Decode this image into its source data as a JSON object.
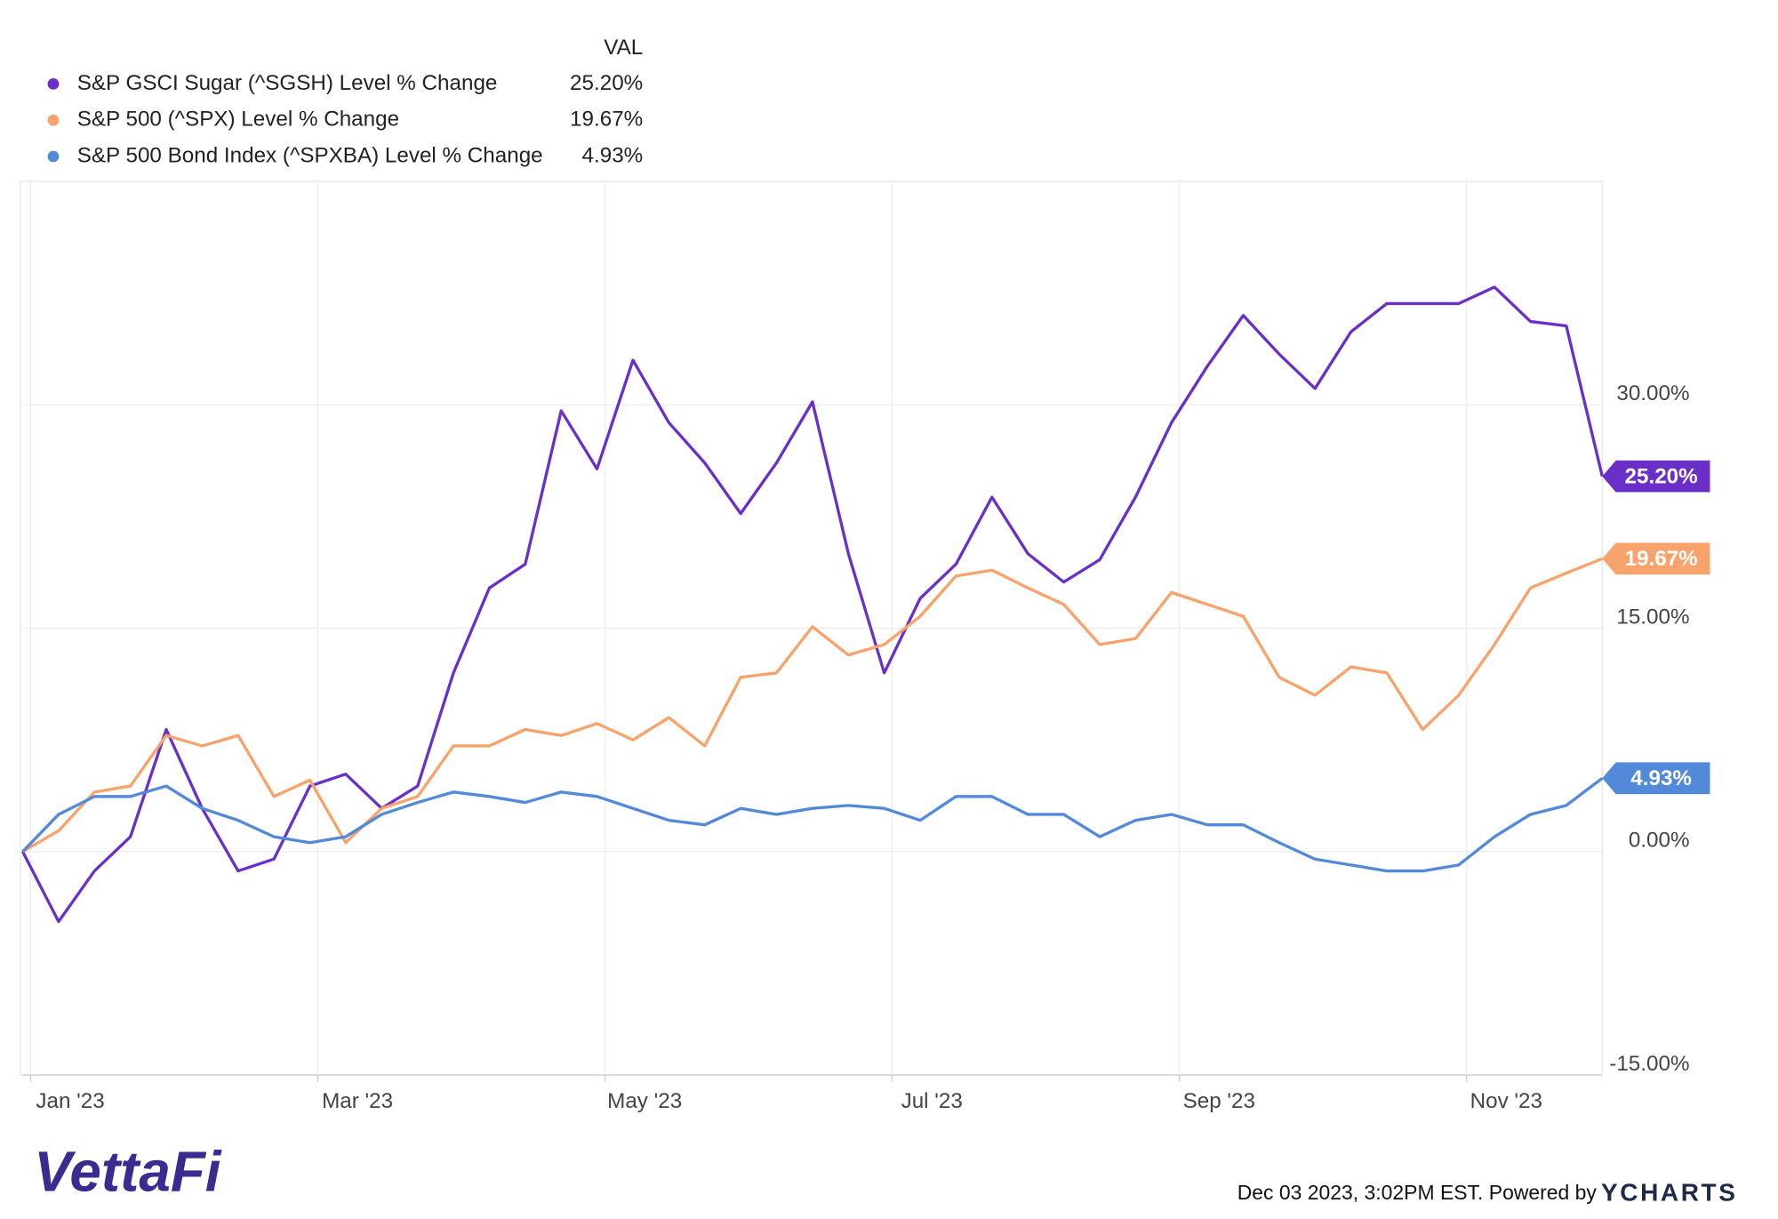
{
  "chart_data": {
    "type": "line",
    "legend_header": "VAL",
    "categories": [
      "Jan '23",
      null,
      null,
      null,
      null,
      null,
      null,
      null,
      "Mar '23",
      null,
      null,
      null,
      null,
      null,
      null,
      null,
      "May '23",
      null,
      null,
      null,
      null,
      null,
      null,
      null,
      "Jul '23",
      null,
      null,
      null,
      null,
      null,
      null,
      null,
      "Sep '23",
      null,
      null,
      null,
      null,
      null,
      null,
      null,
      "Nov '23",
      null,
      null,
      null,
      null
    ],
    "series": [
      {
        "name": "S&P GSCI Sugar (^SGSH) Level % Change",
        "color": "#6a2fc9",
        "values": [
          0,
          -4.7,
          -1.3,
          1.0,
          8.2,
          2.9,
          -1.3,
          -0.5,
          4.4,
          5.2,
          2.9,
          4.4,
          12.0,
          17.7,
          19.3,
          29.6,
          25.7,
          33.0,
          28.8,
          26.1,
          22.7,
          26.1,
          30.2,
          20.0,
          12.0,
          17.0,
          19.3,
          23.8,
          20.0,
          18.1,
          19.6,
          23.8,
          28.8,
          32.6,
          36.0,
          33.4,
          31.1,
          34.9,
          36.8,
          36.8,
          36.8,
          37.9,
          35.6,
          35.3,
          25.2
        ],
        "value_labels": [
          null,
          null,
          null,
          null,
          null,
          null,
          null,
          null,
          null,
          null,
          null,
          null,
          null,
          null,
          null,
          null,
          null,
          null,
          null,
          null,
          null,
          null,
          null,
          null,
          null,
          null,
          null,
          null,
          null,
          null,
          null,
          null,
          null,
          null,
          null,
          null,
          null,
          null,
          null,
          null,
          null,
          null,
          null,
          null,
          "25.20%"
        ]
      },
      {
        "name": "S&P 500 (^SPX) Level % Change",
        "color": "#f7a36b",
        "values": [
          0,
          1.4,
          4.0,
          4.4,
          7.8,
          7.1,
          7.8,
          3.7,
          4.8,
          0.6,
          2.9,
          3.7,
          7.1,
          7.1,
          8.2,
          7.8,
          8.6,
          7.5,
          9.0,
          7.1,
          11.7,
          12.0,
          15.1,
          13.2,
          13.9,
          15.8,
          18.5,
          18.9,
          17.7,
          16.6,
          13.9,
          14.3,
          17.4,
          16.6,
          15.8,
          11.7,
          10.5,
          12.4,
          12.0,
          8.2,
          10.5,
          13.9,
          17.7,
          18.7,
          19.67
        ],
        "value_labels": [
          null,
          null,
          null,
          null,
          null,
          null,
          null,
          null,
          null,
          null,
          null,
          null,
          null,
          null,
          null,
          null,
          null,
          null,
          null,
          null,
          null,
          null,
          null,
          null,
          null,
          null,
          null,
          null,
          null,
          null,
          null,
          null,
          null,
          null,
          null,
          null,
          null,
          null,
          null,
          null,
          null,
          null,
          null,
          null,
          "19.67%"
        ]
      },
      {
        "name": "S&P 500 Bond Index (^SPXBA) Level % Change",
        "color": "#5289d8",
        "values": [
          0,
          2.5,
          3.7,
          3.7,
          4.4,
          2.9,
          2.1,
          1.0,
          0.6,
          1.0,
          2.5,
          3.3,
          4.0,
          3.7,
          3.3,
          4.0,
          3.7,
          2.9,
          2.1,
          1.8,
          2.9,
          2.5,
          2.9,
          3.1,
          2.9,
          2.1,
          3.7,
          3.7,
          2.5,
          2.5,
          1.0,
          2.1,
          2.5,
          1.8,
          1.8,
          0.6,
          -0.5,
          -0.9,
          -1.3,
          -1.3,
          -0.9,
          1.0,
          2.5,
          3.1,
          4.93
        ],
        "value_labels": [
          null,
          null,
          null,
          null,
          null,
          null,
          null,
          null,
          null,
          null,
          null,
          null,
          null,
          null,
          null,
          null,
          null,
          null,
          null,
          null,
          null,
          null,
          null,
          null,
          null,
          null,
          null,
          null,
          null,
          null,
          null,
          null,
          null,
          null,
          null,
          null,
          null,
          null,
          null,
          null,
          null,
          null,
          null,
          null,
          "4.93%"
        ]
      }
    ],
    "ylim": [
      -15,
      45
    ],
    "yticks": [
      {
        "value": -15,
        "label": "-15.00%"
      },
      {
        "value": 0,
        "label": "0.00%"
      },
      {
        "value": 15,
        "label": "15.00%"
      },
      {
        "value": 30,
        "label": "30.00%"
      }
    ],
    "grid": true
  },
  "footer": {
    "logo": "VettaFi",
    "timestamp": "Dec 03 2023, 3:02PM EST. Powered by",
    "brand": "YCHARTS"
  }
}
